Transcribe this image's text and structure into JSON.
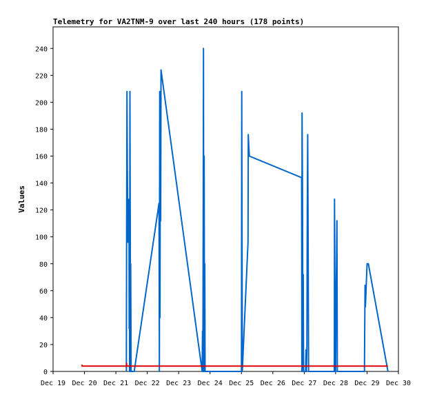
{
  "chart_data": {
    "type": "line",
    "title": "Telemetry for VA2TNM-9 over last 240 hours (178 points)",
    "xlabel": "",
    "ylabel": "Values",
    "x_ticks": [
      "Dec 19",
      "Dec 20",
      "Dec 21",
      "Dec 22",
      "Dec 23",
      "Dec 24",
      "Dec 25",
      "Dec 26",
      "Dec 27",
      "Dec 28",
      "Dec 29",
      "Dec 30"
    ],
    "y_ticks": [
      0,
      20,
      40,
      60,
      80,
      100,
      120,
      140,
      160,
      180,
      200,
      220,
      240
    ],
    "xlim": [
      "Dec 19 00:00",
      "Dec 30 00:00"
    ],
    "ylim": [
      0,
      256
    ],
    "grid": false,
    "legend": "none",
    "series": [
      {
        "color": "#0066cc",
        "points": [
          [
            "Dec 21 08:00",
            0
          ],
          [
            "Dec 21 08:15",
            104
          ],
          [
            "Dec 21 08:30",
            208
          ],
          [
            "Dec 21 08:45",
            156
          ],
          [
            "Dec 21 09:00",
            120
          ],
          [
            "Dec 21 09:15",
            96
          ],
          [
            "Dec 21 09:30",
            110
          ],
          [
            "Dec 21 09:45",
            96
          ],
          [
            "Dec 21 10:00",
            128
          ],
          [
            "Dec 21 10:10",
            32
          ],
          [
            "Dec 21 10:20",
            128
          ],
          [
            "Dec 21 10:30",
            0
          ],
          [
            "Dec 21 10:45",
            208
          ],
          [
            "Dec 21 11:00",
            104
          ],
          [
            "Dec 21 11:10",
            0
          ],
          [
            "Dec 21 11:20",
            80
          ],
          [
            "Dec 21 11:40",
            0
          ],
          [
            "Dec 21 14:00",
            0
          ],
          [
            "Dec 22 09:00",
            125
          ],
          [
            "Dec 22 09:15",
            0
          ],
          [
            "Dec 22 09:30",
            208
          ],
          [
            "Dec 22 09:45",
            40
          ],
          [
            "Dec 22 10:00",
            188
          ],
          [
            "Dec 22 10:15",
            112
          ],
          [
            "Dec 22 10:30",
            224
          ],
          [
            "Dec 23 18:00",
            0
          ],
          [
            "Dec 23 18:15",
            30
          ],
          [
            "Dec 23 18:30",
            0
          ],
          [
            "Dec 23 18:45",
            120
          ],
          [
            "Dec 23 19:00",
            240
          ],
          [
            "Dec 23 19:15",
            0
          ],
          [
            "Dec 23 19:30",
            160
          ],
          [
            "Dec 23 19:45",
            0
          ],
          [
            "Dec 23 20:00",
            80
          ],
          [
            "Dec 23 20:10",
            0
          ],
          [
            "Dec 25 00:00",
            0
          ],
          [
            "Dec 25 00:15",
            208
          ],
          [
            "Dec 25 00:30",
            80
          ],
          [
            "Dec 25 00:40",
            0
          ],
          [
            "Dec 25 05:00",
            96
          ],
          [
            "Dec 25 05:15",
            176
          ],
          [
            "Dec 25 05:30",
            170
          ],
          [
            "Dec 25 06:00",
            160
          ],
          [
            "Dec 26 22:00",
            144
          ],
          [
            "Dec 26 22:10",
            0
          ],
          [
            "Dec 26 22:20",
            192
          ],
          [
            "Dec 26 22:40",
            140
          ],
          [
            "Dec 26 23:00",
            0
          ],
          [
            "Dec 26 23:15",
            72
          ],
          [
            "Dec 26 23:30",
            0
          ],
          [
            "Dec 27 01:00",
            0
          ],
          [
            "Dec 27 01:20",
            16
          ],
          [
            "Dec 27 01:40",
            0
          ],
          [
            "Dec 27 02:00",
            16
          ],
          [
            "Dec 27 02:20",
            120
          ],
          [
            "Dec 27 02:40",
            176
          ],
          [
            "Dec 27 03:00",
            88
          ],
          [
            "Dec 27 03:20",
            0
          ],
          [
            "Dec 27 23:00",
            0
          ],
          [
            "Dec 27 23:10",
            128
          ],
          [
            "Dec 27 23:20",
            96
          ],
          [
            "Dec 27 23:40",
            0
          ],
          [
            "Dec 28 00:00",
            0
          ],
          [
            "Dec 28 00:20",
            56
          ],
          [
            "Dec 28 00:40",
            78
          ],
          [
            "Dec 28 01:00",
            112
          ],
          [
            "Dec 28 01:20",
            0
          ],
          [
            "Dec 28 22:00",
            0
          ],
          [
            "Dec 28 22:15",
            32
          ],
          [
            "Dec 28 22:30",
            64
          ],
          [
            "Dec 28 22:45",
            48
          ],
          [
            "Dec 29 00:00",
            80
          ],
          [
            "Dec 29 01:00",
            80
          ],
          [
            "Dec 29 16:00",
            0
          ]
        ]
      },
      {
        "color": "#dd0000",
        "points": [
          [
            "Dec 19 22:00",
            5
          ],
          [
            "Dec 19 22:15",
            4
          ],
          [
            "Dec 21 08:00",
            4
          ],
          [
            "Dec 21 08:10",
            6
          ],
          [
            "Dec 21 08:20",
            4
          ],
          [
            "Dec 29 16:00",
            4
          ]
        ]
      }
    ]
  }
}
